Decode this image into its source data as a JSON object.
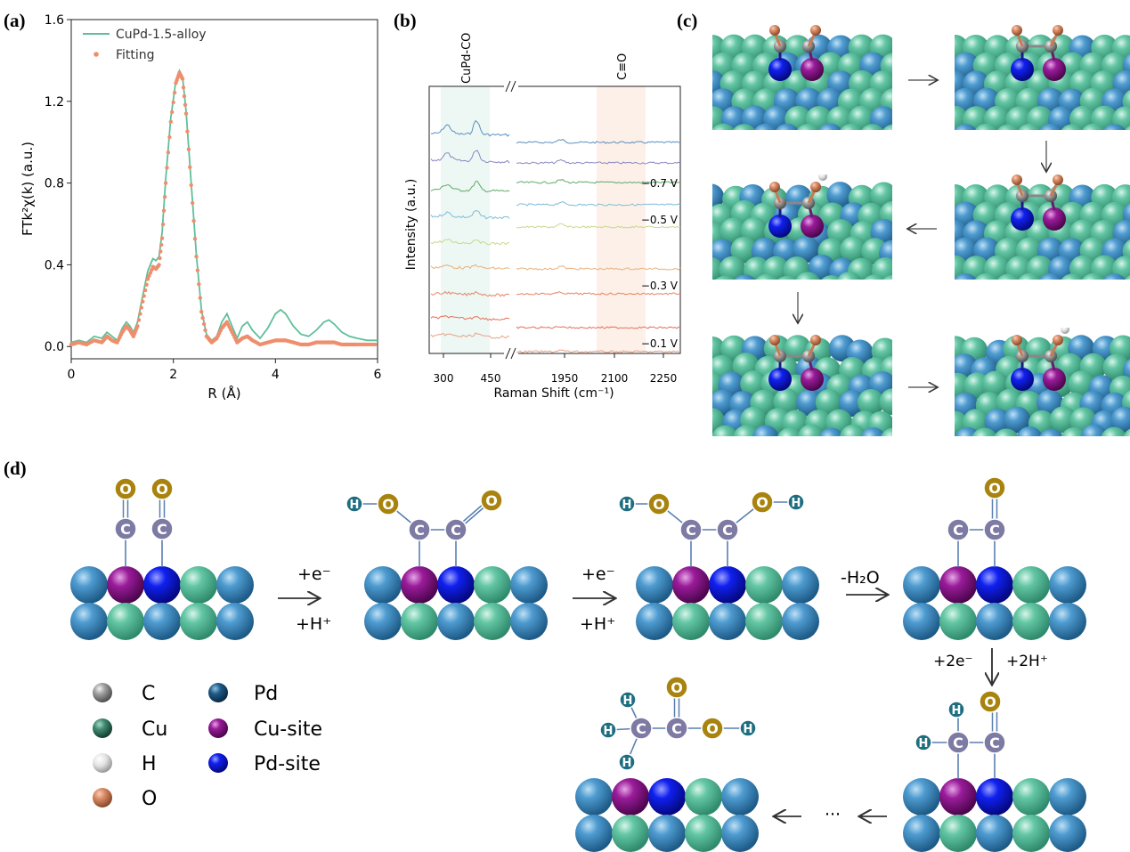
{
  "panels": {
    "a": "(a)",
    "b": "(b)",
    "c": "(c)",
    "d": "(d)"
  },
  "chart_data": [
    {
      "panel": "a",
      "type": "line",
      "xlabel": "R (Å)",
      "ylabel": "FTk²χ(k) (a.u.)",
      "xlim": [
        0,
        6
      ],
      "ylim": [
        -0.06,
        1.6
      ],
      "xticks": [
        "0",
        "2",
        "4",
        "6"
      ],
      "yticks": [
        "0.0",
        "0.4",
        "0.8",
        "1.2",
        "1.6"
      ],
      "legend_position": "top-left",
      "series": [
        {
          "name": "CuPd-1.5-alloy",
          "style": "line",
          "color": "#5fbf9a",
          "x": [
            0,
            0.15,
            0.3,
            0.45,
            0.6,
            0.7,
            0.8,
            0.9,
            1.0,
            1.08,
            1.15,
            1.22,
            1.3,
            1.4,
            1.5,
            1.6,
            1.66,
            1.72,
            1.78,
            1.85,
            1.95,
            2.05,
            2.12,
            2.18,
            2.25,
            2.35,
            2.45,
            2.55,
            2.65,
            2.75,
            2.85,
            2.95,
            3.05,
            3.15,
            3.25,
            3.35,
            3.45,
            3.55,
            3.7,
            3.85,
            4.0,
            4.1,
            4.2,
            4.35,
            4.5,
            4.65,
            4.8,
            4.95,
            5.05,
            5.15,
            5.3,
            5.45,
            5.6,
            5.8,
            6.0
          ],
          "y": [
            0.02,
            0.03,
            0.02,
            0.05,
            0.04,
            0.07,
            0.05,
            0.03,
            0.09,
            0.12,
            0.1,
            0.07,
            0.12,
            0.25,
            0.37,
            0.43,
            0.42,
            0.44,
            0.56,
            0.82,
            1.12,
            1.3,
            1.35,
            1.32,
            1.15,
            0.8,
            0.45,
            0.18,
            0.06,
            0.03,
            0.05,
            0.12,
            0.16,
            0.1,
            0.04,
            0.1,
            0.12,
            0.08,
            0.04,
            0.09,
            0.16,
            0.18,
            0.16,
            0.1,
            0.06,
            0.05,
            0.08,
            0.12,
            0.13,
            0.11,
            0.07,
            0.05,
            0.04,
            0.03,
            0.03
          ]
        },
        {
          "name": "Fitting",
          "style": "dots",
          "color": "#ef8e6c",
          "x": [
            0,
            0.15,
            0.3,
            0.45,
            0.6,
            0.7,
            0.8,
            0.9,
            1.0,
            1.08,
            1.15,
            1.22,
            1.3,
            1.4,
            1.5,
            1.6,
            1.66,
            1.72,
            1.78,
            1.85,
            1.95,
            2.05,
            2.12,
            2.18,
            2.25,
            2.35,
            2.45,
            2.55,
            2.65,
            2.75,
            2.85,
            2.95,
            3.05,
            3.15,
            3.25,
            3.35,
            3.45,
            3.55,
            3.7,
            3.85,
            4.0,
            4.1,
            4.2,
            4.35,
            4.5,
            4.65,
            4.8,
            4.95,
            5.05,
            5.15,
            5.3,
            5.45,
            5.6,
            5.8,
            6.0
          ],
          "y": [
            0.01,
            0.02,
            0.01,
            0.03,
            0.02,
            0.05,
            0.03,
            0.02,
            0.07,
            0.1,
            0.08,
            0.05,
            0.1,
            0.22,
            0.33,
            0.39,
            0.38,
            0.4,
            0.53,
            0.8,
            1.1,
            1.29,
            1.34,
            1.31,
            1.14,
            0.79,
            0.44,
            0.17,
            0.05,
            0.02,
            0.04,
            0.09,
            0.12,
            0.07,
            0.02,
            0.04,
            0.05,
            0.03,
            0.01,
            0.02,
            0.03,
            0.03,
            0.03,
            0.02,
            0.01,
            0.01,
            0.02,
            0.02,
            0.02,
            0.02,
            0.01,
            0.01,
            0.01,
            0.01,
            0.01
          ]
        }
      ]
    },
    {
      "panel": "b",
      "type": "line",
      "xlabel": "Raman Shift (cm⁻¹)",
      "ylabel": "Intensity (a.u.)",
      "xticks": [
        "300",
        "450",
        "1950",
        "2100",
        "2250"
      ],
      "x_break": true,
      "band_labels": [
        "CuPd-CO",
        "C≡O"
      ],
      "band_ranges": [
        [
          290,
          460
        ],
        [
          2040,
          2200
        ]
      ],
      "potential_labels": [
        "−0.7 V",
        "−0.5 V",
        "−0.3 V",
        "−0.1 V"
      ],
      "series_colors": [
        "#5b8fbf",
        "#8a88c4",
        "#62a96b",
        "#7fbcd7",
        "#c7d98a",
        "#e7b07c",
        "#e58466",
        "#e5705a",
        "#e7a088"
      ]
    }
  ],
  "panel_c": {
    "arrows": [
      "→",
      "↓",
      "←",
      "↓",
      "→"
    ]
  },
  "panel_d": {
    "steps": [
      {
        "top": "+e⁻",
        "bottom": "+H⁺",
        "arrow": "→"
      },
      {
        "top": "+e⁻",
        "bottom": "+H⁺",
        "arrow": "→"
      },
      {
        "top": "-H₂O",
        "bottom": "",
        "arrow": "→"
      },
      {
        "left": "+2e⁻",
        "right": "+2H⁺",
        "arrow": "↓"
      },
      {
        "text": "···",
        "arrow": "←"
      }
    ],
    "atom_labels": {
      "C": "C",
      "O": "O",
      "H": "H"
    },
    "legend": [
      {
        "label": "C",
        "color": "#9a9a9a"
      },
      {
        "label": "Cu",
        "color": "#3f8a72"
      },
      {
        "label": "H",
        "color": "#d9d9d9"
      },
      {
        "label": "O",
        "color": "#c87a55"
      },
      {
        "label": "Pd",
        "color": "#1e5a86"
      },
      {
        "label": "Cu-site",
        "color": "#8a0f8a"
      },
      {
        "label": "Pd-site",
        "color": "#1010e0"
      }
    ],
    "colors": {
      "pd": "#3f8fc2",
      "cu": "#5bbf9f",
      "cu_site": "#8a0f8a",
      "pd_site": "#0a10d8",
      "c_node": "#7d7aa3",
      "o_node": "#a8830e",
      "h_node": "#1e6e80"
    }
  }
}
